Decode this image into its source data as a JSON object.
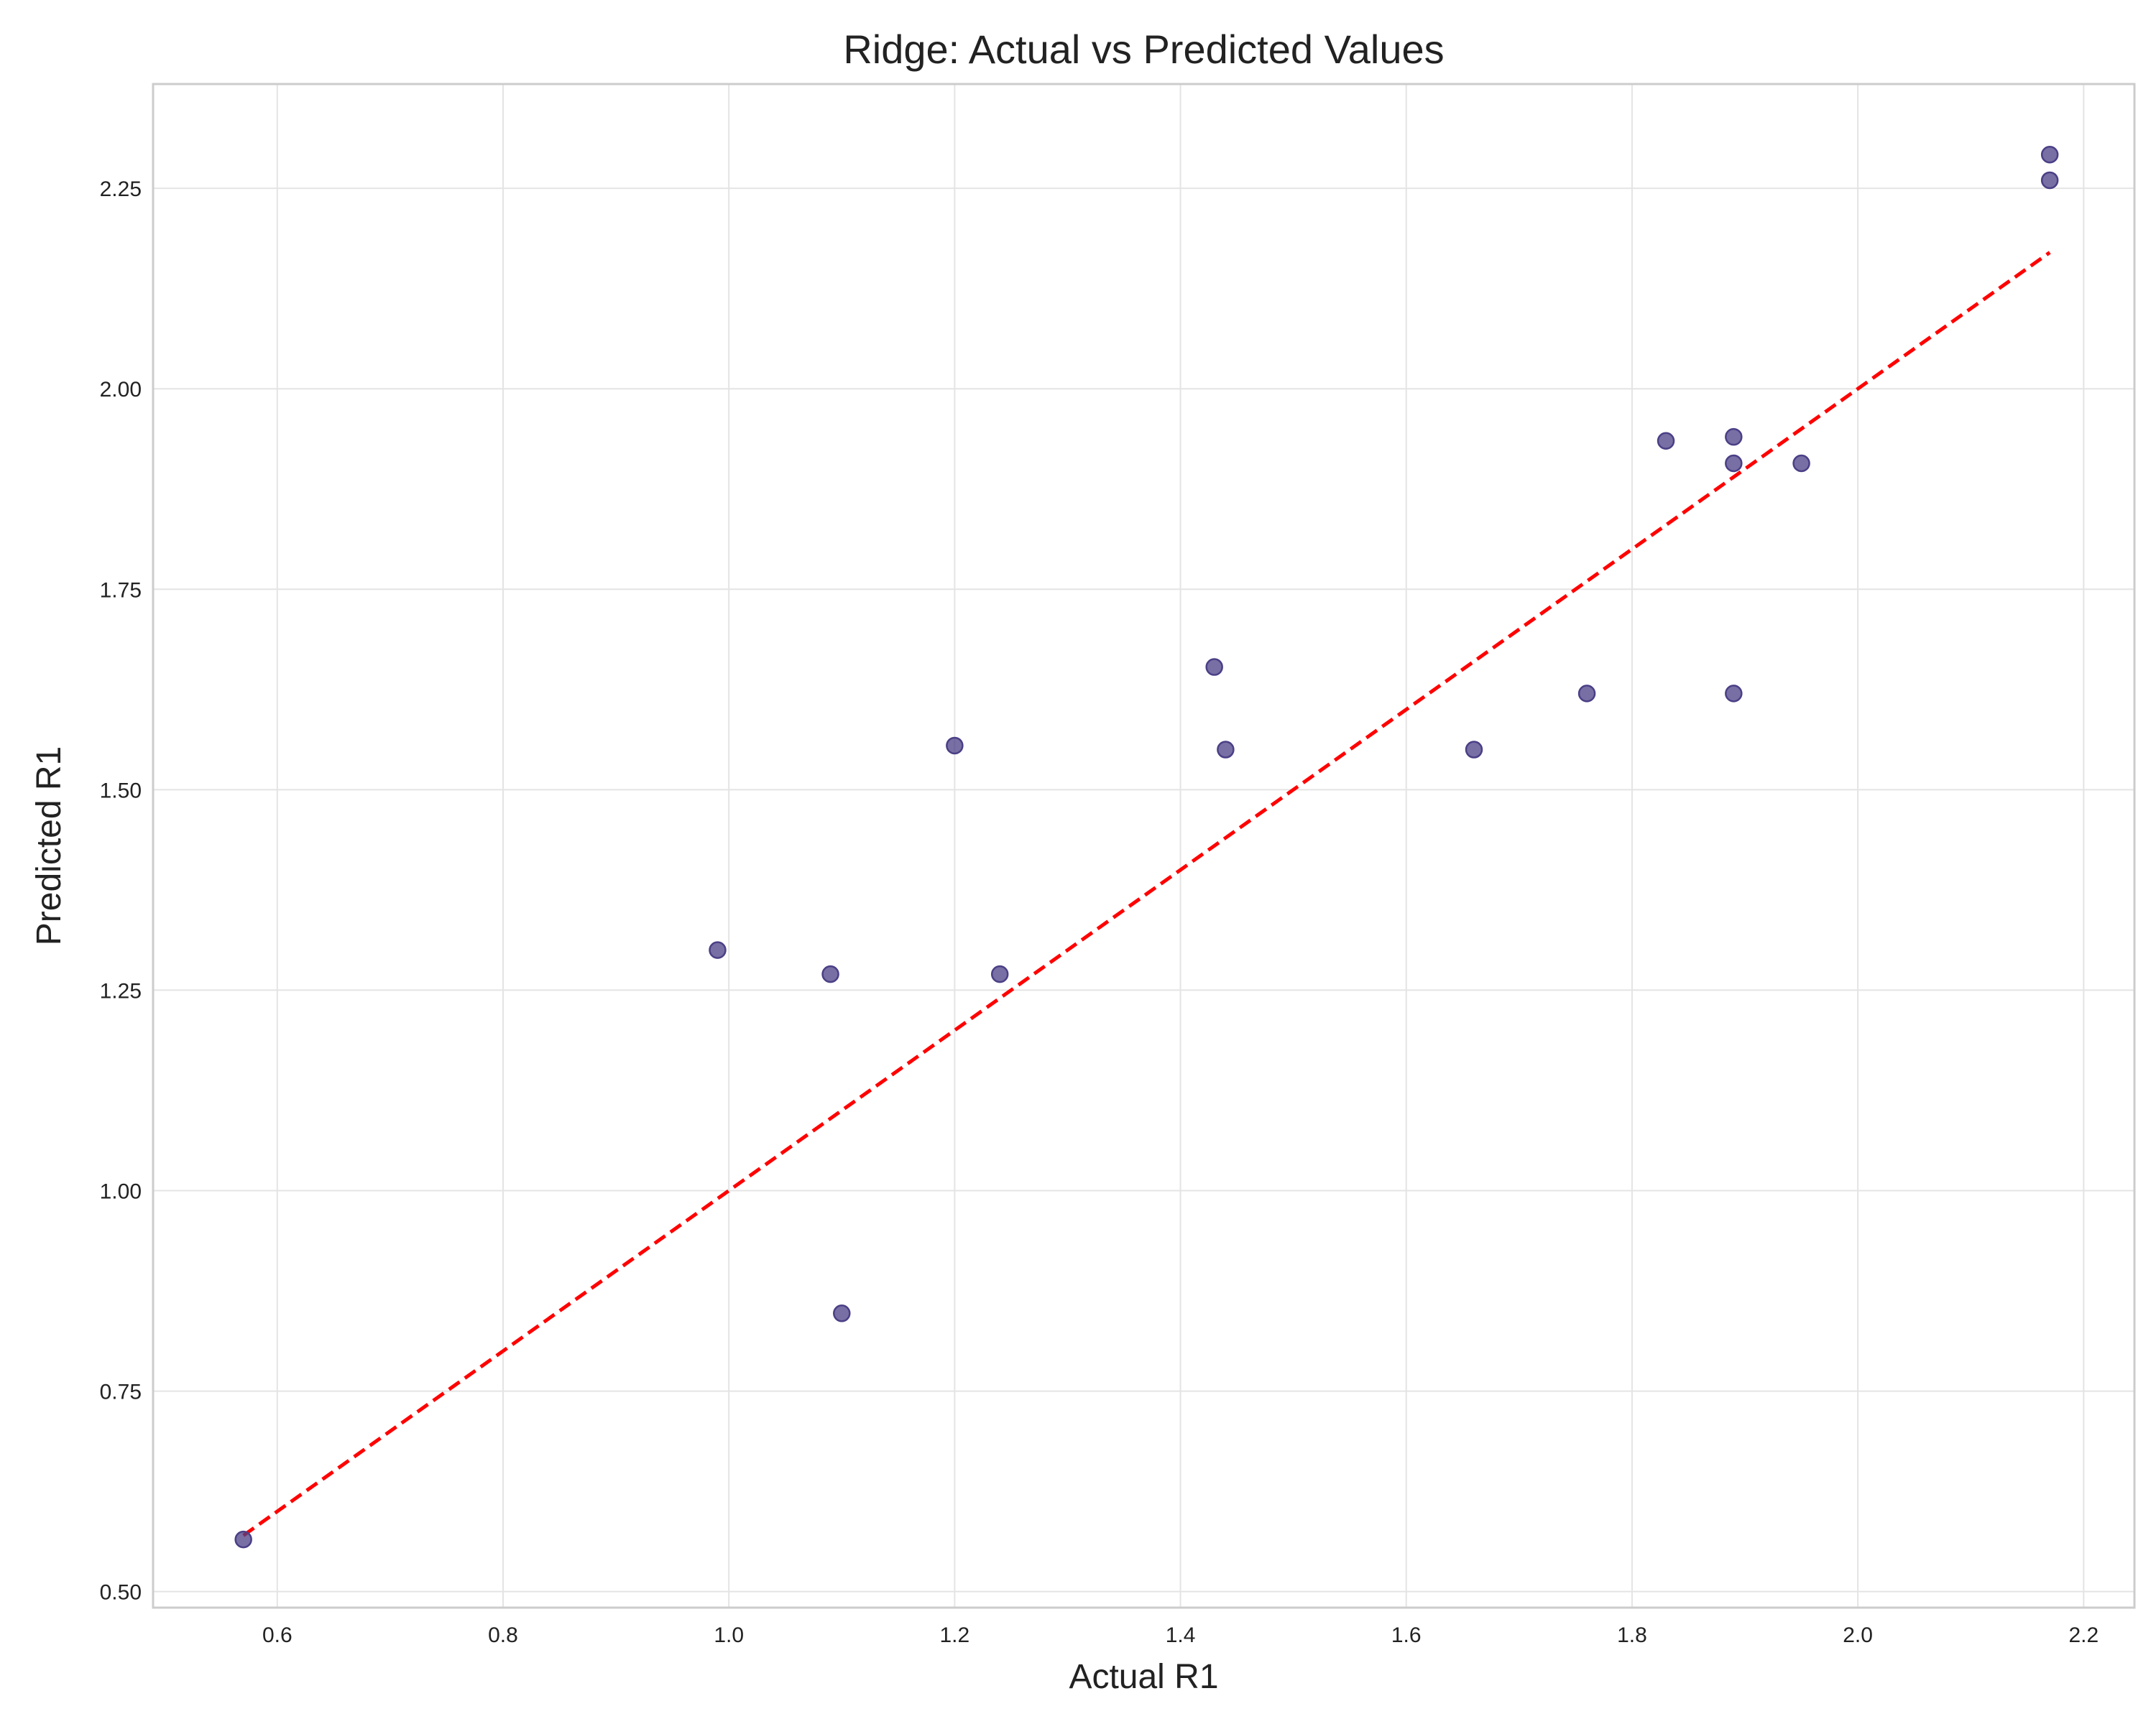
{
  "chart_data": {
    "type": "scatter",
    "title": "Ridge: Actual vs Predicted Values",
    "xlabel": "Actual R1",
    "ylabel": "Predicted R1",
    "xlim": [
      0.49,
      2.245
    ],
    "ylim": [
      0.48,
      2.38
    ],
    "xticks": [
      "0.6",
      "0.8",
      "1.0",
      "1.2",
      "1.4",
      "1.6",
      "1.8",
      "2.0",
      "2.2"
    ],
    "yticks": [
      "0.50",
      "0.75",
      "1.00",
      "1.25",
      "1.50",
      "1.75",
      "2.00",
      "2.25"
    ],
    "grid": true,
    "points": [
      {
        "x": 0.57,
        "y": 0.565
      },
      {
        "x": 0.99,
        "y": 1.3
      },
      {
        "x": 1.09,
        "y": 1.27
      },
      {
        "x": 1.1,
        "y": 0.847
      },
      {
        "x": 1.2,
        "y": 1.555
      },
      {
        "x": 1.24,
        "y": 1.27
      },
      {
        "x": 1.43,
        "y": 1.653
      },
      {
        "x": 1.44,
        "y": 1.55
      },
      {
        "x": 1.66,
        "y": 1.55
      },
      {
        "x": 1.76,
        "y": 1.62
      },
      {
        "x": 1.83,
        "y": 1.935
      },
      {
        "x": 1.89,
        "y": 1.94
      },
      {
        "x": 1.89,
        "y": 1.907
      },
      {
        "x": 1.89,
        "y": 1.62
      },
      {
        "x": 1.95,
        "y": 1.907
      },
      {
        "x": 2.17,
        "y": 2.292
      },
      {
        "x": 2.17,
        "y": 2.26
      }
    ],
    "reference_line": {
      "x": [
        0.57,
        2.17
      ],
      "y": [
        0.57,
        2.17
      ],
      "style": "dashed",
      "color": "#ff0000"
    },
    "point_color": "#4b3f86"
  }
}
